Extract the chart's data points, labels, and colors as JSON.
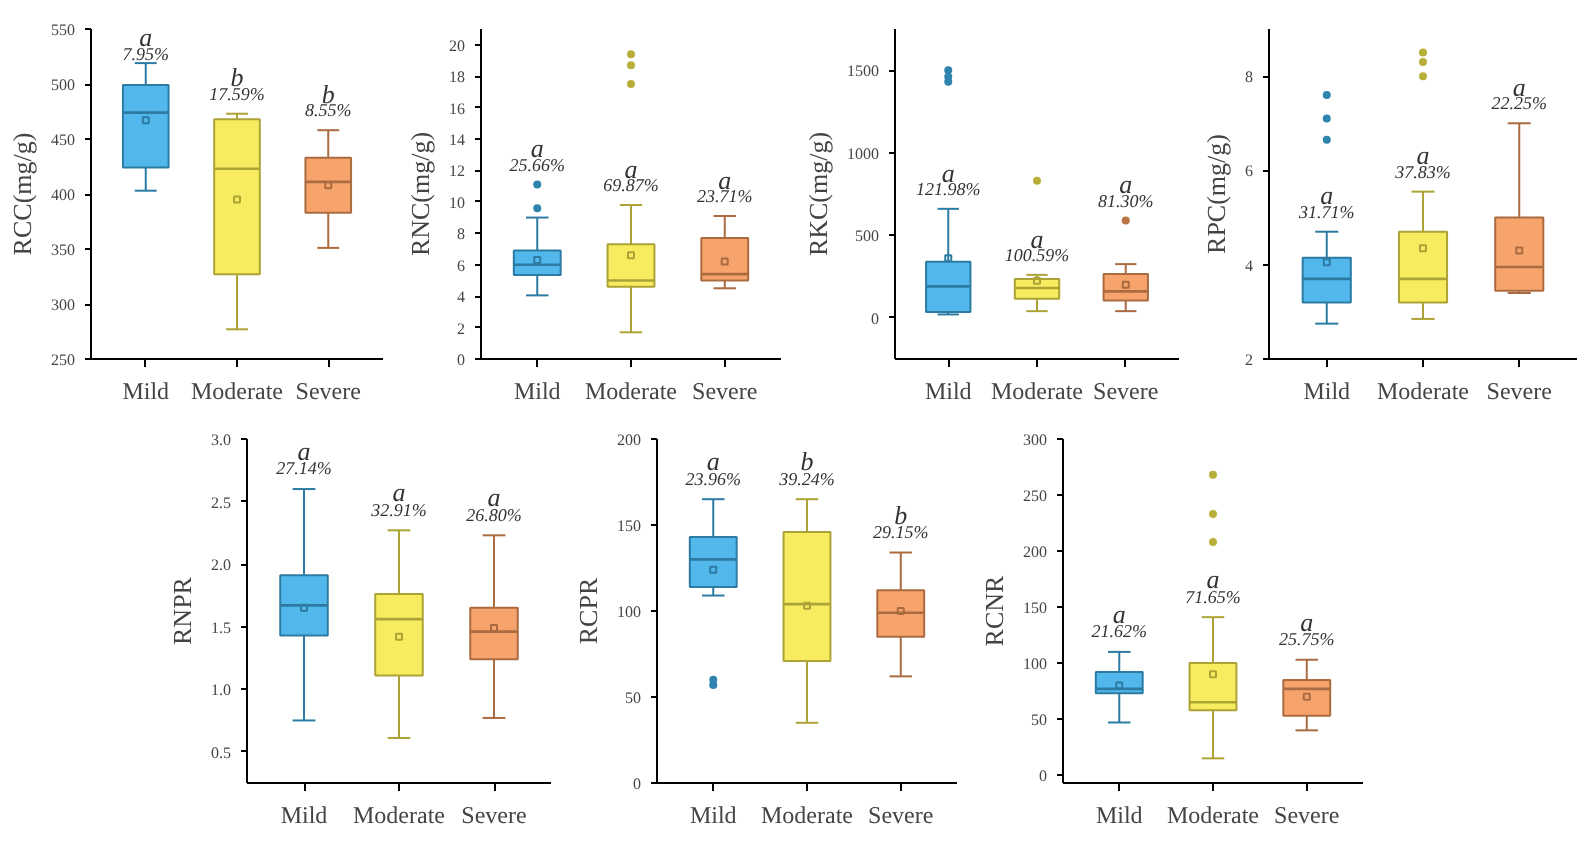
{
  "chart_data": [
    {
      "type": "box",
      "ylabel": "RCC(mg/g)",
      "categories": [
        "Mild",
        "Moderate",
        "Severe"
      ],
      "colors": [
        "#3fb0ea",
        "#f6ea4e",
        "#f59a5c"
      ],
      "ylim": [
        250,
        550
      ],
      "yticks": [
        250,
        300,
        350,
        400,
        450,
        500,
        550
      ],
      "grid": false,
      "boxes": [
        {
          "low": 403,
          "q1": 424,
          "median": 474,
          "q3": 499,
          "high": 519,
          "mean": 467
        },
        {
          "low": 277,
          "q1": 327,
          "median": 423,
          "q3": 468,
          "high": 473,
          "mean": 395
        },
        {
          "low": 351,
          "q1": 383,
          "median": 411,
          "q3": 433,
          "high": 458,
          "mean": 408
        }
      ],
      "annotations": [
        "a",
        "7.95%",
        "b",
        "17.59%",
        "b",
        "8.55%"
      ]
    },
    {
      "type": "box",
      "ylabel": "RNC(mg/g)",
      "categories": [
        "Mild",
        "Moderate",
        "Severe"
      ],
      "colors": [
        "#3fb0ea",
        "#f6ea4e",
        "#f59a5c"
      ],
      "ylim": [
        0,
        21
      ],
      "yticks": [
        0,
        2,
        4,
        6,
        8,
        10,
        12,
        14,
        16,
        18,
        20
      ],
      "grid": false,
      "boxes": [
        {
          "low": 4.05,
          "q1": 5.35,
          "median": 6.0,
          "q3": 6.9,
          "high": 9.0,
          "mean": 6.3,
          "outliers": [
            9.6,
            11.1
          ]
        },
        {
          "low": 1.7,
          "q1": 4.6,
          "median": 5.0,
          "q3": 7.3,
          "high": 9.8,
          "mean": 6.6,
          "outliers": [
            17.5,
            18.7,
            19.4
          ]
        },
        {
          "low": 4.5,
          "q1": 5.0,
          "median": 5.4,
          "q3": 7.7,
          "high": 9.1,
          "mean": 6.2
        }
      ],
      "annotations": [
        "a",
        "25.66%",
        "a",
        "69.87%",
        "a",
        "23.71%"
      ]
    },
    {
      "type": "box",
      "ylabel": "RKC(mg/g)",
      "categories": [
        "Mild",
        "Moderate",
        "Severe"
      ],
      "colors": [
        "#3fb0ea",
        "#f6ea4e",
        "#f59a5c"
      ],
      "ylim": [
        -250,
        1750
      ],
      "yticks": [
        0,
        500,
        1000,
        1500
      ],
      "grid": false,
      "boxes": [
        {
          "low": 20,
          "q1": 35,
          "median": 190,
          "q3": 340,
          "high": 660,
          "mean": 360,
          "outliers": [
            1430,
            1460,
            1500
          ]
        },
        {
          "low": 40,
          "q1": 115,
          "median": 180,
          "q3": 235,
          "high": 260,
          "mean": 225,
          "outliers": [
            830
          ]
        },
        {
          "low": 40,
          "q1": 105,
          "median": 160,
          "q3": 265,
          "high": 325,
          "mean": 200,
          "outliers": [
            590
          ]
        }
      ],
      "annotations": [
        "a",
        "121.98%",
        "a",
        "100.59%",
        "a",
        "81.30%"
      ]
    },
    {
      "type": "box",
      "ylabel": "RPC(mg/g)",
      "categories": [
        "Mild",
        "Moderate",
        "Severe"
      ],
      "colors": [
        "#3fb0ea",
        "#f6ea4e",
        "#f59a5c"
      ],
      "ylim": [
        2,
        9
      ],
      "yticks": [
        2,
        4,
        6,
        8
      ],
      "grid": false,
      "boxes": [
        {
          "low": 2.75,
          "q1": 3.2,
          "median": 3.7,
          "q3": 4.15,
          "high": 4.7,
          "mean": 4.05,
          "outliers": [
            6.65,
            7.1,
            7.6
          ]
        },
        {
          "low": 2.85,
          "q1": 3.2,
          "median": 3.7,
          "q3": 4.7,
          "high": 5.55,
          "mean": 4.35,
          "outliers": [
            8.0,
            8.3,
            8.5
          ]
        },
        {
          "low": 3.4,
          "q1": 3.45,
          "median": 3.95,
          "q3": 5.0,
          "high": 7.0,
          "mean": 4.3
        }
      ],
      "annotations": [
        "a",
        "31.71%",
        "a",
        "37.83%",
        "a",
        "22.25%"
      ]
    },
    {
      "type": "box",
      "ylabel": "RNPR",
      "categories": [
        "Mild",
        "Moderate",
        "Severe"
      ],
      "colors": [
        "#3fb0ea",
        "#f6ea4e",
        "#f59a5c"
      ],
      "ylim": [
        0.25,
        3.0
      ],
      "yticks": [
        {
          "value": 0.5,
          "label": "0.5"
        },
        {
          "value": 1.0,
          "label": "1.0"
        },
        {
          "value": 1.5,
          "label": "1.5"
        },
        {
          "value": 2.0,
          "label": "2.0"
        },
        {
          "value": 2.5,
          "label": "2.5"
        },
        {
          "value": 3.0,
          "label": "3.0"
        }
      ],
      "grid": false,
      "boxes": [
        {
          "low": 0.75,
          "q1": 1.43,
          "median": 1.67,
          "q3": 1.91,
          "high": 2.6,
          "mean": 1.65
        },
        {
          "low": 0.61,
          "q1": 1.11,
          "median": 1.56,
          "q3": 1.76,
          "high": 2.27,
          "mean": 1.42
        },
        {
          "low": 0.77,
          "q1": 1.24,
          "median": 1.46,
          "q3": 1.65,
          "high": 2.23,
          "mean": 1.49
        }
      ],
      "annotations": [
        "a",
        "27.14%",
        "a",
        "32.91%",
        "a",
        "26.80%"
      ]
    },
    {
      "type": "box",
      "ylabel": "RCPR",
      "categories": [
        "Mild",
        "Moderate",
        "Severe"
      ],
      "colors": [
        "#3fb0ea",
        "#f6ea4e",
        "#f59a5c"
      ],
      "ylim": [
        0,
        200
      ],
      "yticks": [
        0,
        50,
        100,
        150,
        200
      ],
      "grid": false,
      "boxes": [
        {
          "low": 109,
          "q1": 114,
          "median": 130,
          "q3": 143,
          "high": 165,
          "mean": 124,
          "outliers": [
            57,
            60
          ]
        },
        {
          "low": 35,
          "q1": 71,
          "median": 104,
          "q3": 146,
          "high": 165,
          "mean": 103
        },
        {
          "low": 62,
          "q1": 85,
          "median": 99,
          "q3": 112,
          "high": 134,
          "mean": 100
        }
      ],
      "annotations": [
        "a",
        "23.96%",
        "b",
        "39.24%",
        "b",
        "29.15%"
      ]
    },
    {
      "type": "box",
      "ylabel": "RCNR",
      "categories": [
        "Mild",
        "Moderate",
        "Severe"
      ],
      "colors": [
        "#3fb0ea",
        "#f6ea4e",
        "#f59a5c"
      ],
      "ylim": [
        -7,
        300
      ],
      "yticks": [
        0,
        50,
        100,
        150,
        200,
        250,
        300
      ],
      "grid": false,
      "boxes": [
        {
          "low": 47,
          "q1": 73,
          "median": 77,
          "q3": 92,
          "high": 110,
          "mean": 80
        },
        {
          "low": 15,
          "q1": 58,
          "median": 65,
          "q3": 100,
          "high": 141,
          "mean": 90,
          "outliers": [
            208,
            233,
            268
          ]
        },
        {
          "low": 40,
          "q1": 53,
          "median": 77,
          "q3": 85,
          "high": 103,
          "mean": 70
        }
      ],
      "annotations": [
        "a",
        "21.62%",
        "a",
        "71.65%",
        "a",
        "25.75%"
      ]
    }
  ]
}
